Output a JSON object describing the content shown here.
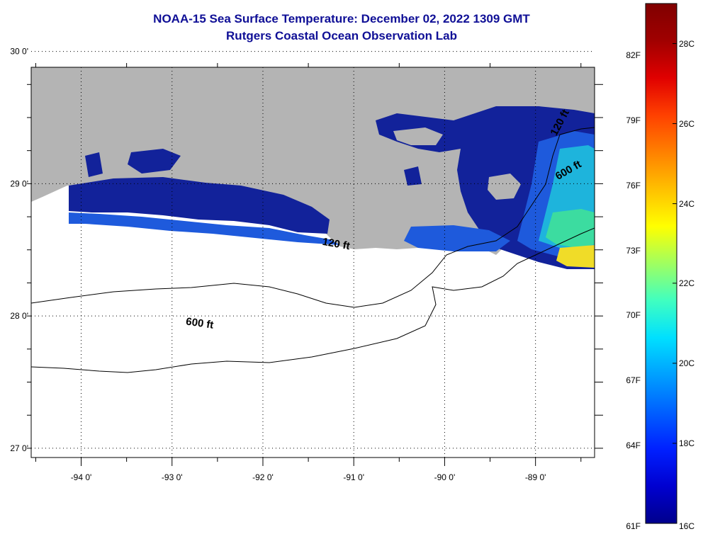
{
  "title": {
    "line1": "NOAA-15 Sea Surface Temperature:  December 02, 2022 1309 GMT",
    "line2": "Rutgers Coastal Ocean Observation Lab"
  },
  "map": {
    "lon_range": [
      -94.55,
      -88.35
    ],
    "lat_range": [
      26.93,
      29.88
    ],
    "lon_ticks": [
      {
        "value": -94,
        "label": "-94 0'"
      },
      {
        "value": -93,
        "label": "-93 0'"
      },
      {
        "value": -92,
        "label": "-92 0'"
      },
      {
        "value": -91,
        "label": "-91 0'"
      },
      {
        "value": -90,
        "label": "-90 0'"
      },
      {
        "value": -89,
        "label": "-89 0'"
      }
    ],
    "lat_ticks": [
      {
        "value": 30,
        "label": "30 0'"
      },
      {
        "value": 29,
        "label": "29 0'"
      },
      {
        "value": 28,
        "label": "28 0'"
      },
      {
        "value": 27,
        "label": "27 0'"
      }
    ],
    "contour_labels": [
      {
        "text": "120 ft",
        "lon": -91.2,
        "lat": 28.52,
        "rotate": 10
      },
      {
        "text": "600 ft",
        "lon": -92.7,
        "lat": 27.92,
        "rotate": 8
      },
      {
        "text": "120 ft",
        "lon": -88.7,
        "lat": 29.45,
        "rotate": -62
      },
      {
        "text": "600 ft",
        "lon": -88.62,
        "lat": 29.08,
        "rotate": -30
      }
    ],
    "colors": {
      "land": "#b4b4b4",
      "water": "#ffffff",
      "sst_deep": "#12229a",
      "sst_mid": "#1e5adc",
      "sst_cyan": "#1eb4dc",
      "sst_green": "#3cdca0",
      "sst_yellow": "#f0dc28",
      "title": "#0f0f96"
    }
  },
  "colorbar": {
    "colors": [
      "#00008c",
      "#0000d0",
      "#0020ff",
      "#0060ff",
      "#00a0ff",
      "#00e0ff",
      "#40ffc0",
      "#a0ff60",
      "#ffff00",
      "#ffc000",
      "#ff8000",
      "#ff4000",
      "#e00000",
      "#a00000",
      "#800000"
    ],
    "fahrenheit_labels": [
      {
        "label": "82F",
        "frac": 0.9
      },
      {
        "label": "79F",
        "frac": 0.775
      },
      {
        "label": "76F",
        "frac": 0.65
      },
      {
        "label": "73F",
        "frac": 0.525
      },
      {
        "label": "70F",
        "frac": 0.4
      },
      {
        "label": "67F",
        "frac": 0.275
      },
      {
        "label": "64F",
        "frac": 0.15
      },
      {
        "label": "61F",
        "frac": 0.0
      }
    ],
    "celsius_labels": [
      {
        "label": "28C",
        "frac": 0.923
      },
      {
        "label": "26C",
        "frac": 0.769
      },
      {
        "label": "24C",
        "frac": 0.615
      },
      {
        "label": "22C",
        "frac": 0.462
      },
      {
        "label": "20C",
        "frac": 0.308
      },
      {
        "label": "18C",
        "frac": 0.154
      },
      {
        "label": "16C",
        "frac": 0.0
      }
    ]
  }
}
